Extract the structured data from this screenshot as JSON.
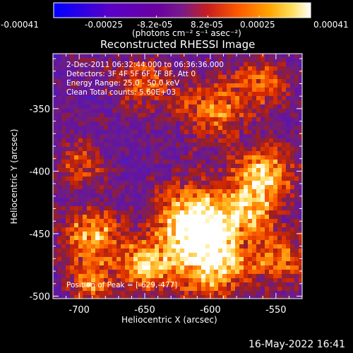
{
  "colorbar": {
    "tick_labels": [
      "-0.00041",
      "-0.00025",
      "-8.2e-05",
      "8.2e-05",
      "0.00025",
      "0.00041"
    ],
    "unit_label": "(photons cm⁻² s⁻¹ asec⁻²)",
    "range": [
      -0.00041,
      0.00041
    ],
    "colors": [
      "#0000ff",
      "#5a00c8",
      "#6a00a0",
      "#7a1a8a",
      "#c81e1e",
      "#ff5a00",
      "#ffa500",
      "#ffe060",
      "#ffffff"
    ]
  },
  "chart_data": {
    "type": "heatmap",
    "title": "Reconstructed RHESSI Image",
    "xlabel": "Heliocentric X (arcsec)",
    "ylabel": "Heliocentric Y (arcsec)",
    "xlim": [
      -720,
      -530
    ],
    "ylim": [
      -502,
      -306
    ],
    "x_ticks": [
      -700,
      -650,
      -600,
      -550
    ],
    "y_ticks": [
      -350,
      -400,
      -450,
      -500
    ],
    "info_lines": [
      "2-Dec-2011 06:32:44.000 to 06:36:36.000",
      "Detectors: 3F 4F 5F 6F 7F 8F, Att 0",
      "Energy Range: 25.0 - 50.0 keV",
      "Clean     Total counts: 5.60E+03"
    ],
    "peak_label": "Position of Peak = [-629,-477]",
    "peak": [
      -629,
      -477
    ]
  },
  "timestamp": "16-May-2022 16:41"
}
